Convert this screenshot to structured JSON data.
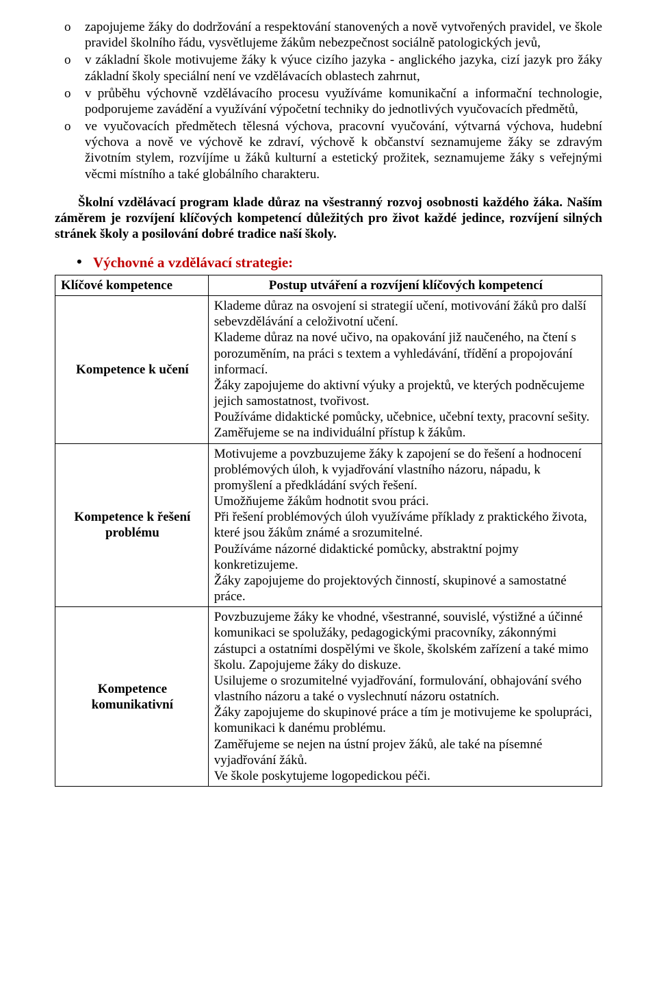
{
  "bullets": [
    "zapojujeme žáky do dodržování a respektování stanovených a nově vytvořených pravidel, ve škole pravidel školního řádu, vysvětlujeme žákům nebezpečnost sociálně patologických jevů,",
    "v základní škole motivujeme žáky k výuce cizího jazyka - anglického jazyka, cizí jazyk pro žáky základní školy speciální není ve vzdělávacích oblastech zahrnut,",
    "v průběhu výchovně vzdělávacího procesu využíváme komunikační a informační technologie, podporujeme zavádění a využívání výpočetní techniky do jednotlivých vyučovacích předmětů,",
    "ve vyučovacích předmětech tělesná výchova, pracovní vyučování, výtvarná výchova, hudební výchova a nově ve výchově ke zdraví, výchově k občanství seznamujeme žáky se zdravým životním stylem, rozvíjíme u žáků kulturní a estetický prožitek, seznamujeme žáky s veřejnými věcmi místního a také globálního charakteru."
  ],
  "bold_paragraph": "Školní vzdělávací program klade důraz na všestranný rozvoj osobnosti každého žáka. Naším záměrem je rozvíjení klíčových kompetencí důležitých pro život každé jedince, rozvíjení silných stránek školy a posilování dobré tradice naší školy.",
  "section_heading": "Výchovné a vzdělávací strategie:",
  "table": {
    "header_left": "Klíčové kompetence",
    "header_right": "Postup utváření a rozvíjení klíčových kompetencí",
    "rows": [
      {
        "label": "Kompetence k učení",
        "content": "Klademe důraz na osvojení si strategií učení, motivování žáků pro další sebevzdělávání a celoživotní učení.\nKlademe důraz na nové učivo, na opakování již naučeného, na čtení s porozuměním, na práci s textem a vyhledávání, třídění a propojování informací.\nŽáky zapojujeme do aktivní výuky a projektů, ve kterých podněcujeme jejich samostatnost, tvořivost.\nPoužíváme didaktické pomůcky, učebnice, učební texty, pracovní sešity.\nZaměřujeme se na individuální přístup k žákům."
      },
      {
        "label": "Kompetence k řešení problému",
        "content": "Motivujeme a povzbuzujeme žáky k zapojení se do řešení a hodnocení problémových úloh, k vyjadřování vlastního názoru, nápadu, k promyšlení a předkládání svých řešení.\nUmožňujeme žákům hodnotit svou práci.\nPři řešení problémových úloh využíváme příklady z praktického života, které jsou žákům známé a srozumitelné.\nPoužíváme názorné didaktické pomůcky, abstraktní pojmy konkretizujeme.\nŽáky zapojujeme do projektových činností, skupinové a samostatné práce."
      },
      {
        "label": "Kompetence komunikativní",
        "content": "Povzbuzujeme žáky ke vhodné, všestranné, souvislé, výstižné a účinné komunikaci se spolužáky, pedagogickými pracovníky, zákonnými zástupci a ostatními dospělými ve škole, školském zařízení a také mimo školu. Zapojujeme žáky do diskuze.\nUsilujeme o srozumitelné vyjadřování, formulování, obhajování svého vlastního názoru a také o vyslechnutí názoru ostatních.\nŽáky zapojujeme do skupinové práce a tím je motivujeme ke spolupráci, komunikaci k danému problému.\nZaměřujeme se nejen na ústní projev žáků, ale také na písemné vyjadřování žáků.\nVe škole poskytujeme logopedickou péči."
      }
    ]
  },
  "colors": {
    "heading": "#c00000",
    "text": "#000000",
    "border": "#000000",
    "background": "#ffffff"
  }
}
